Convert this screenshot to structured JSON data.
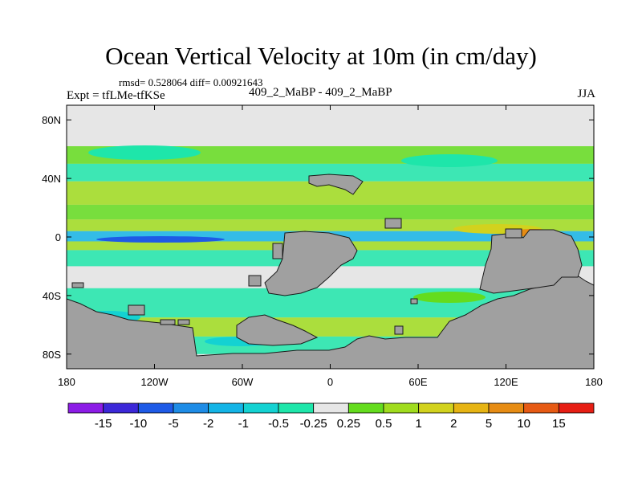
{
  "chart_data": {
    "type": "heatmap",
    "title": "Ocean Vertical Velocity at 10m (in cm/day)",
    "stats_label": "rmsd= 0.528064 diff= 0.00921643",
    "left_label": "Expt = tfLMe-tfKSe",
    "center_label": "409_2_MaBP - 409_2_MaBP",
    "right_label": "JJA",
    "xlim": [
      -180,
      180
    ],
    "ylim": [
      -90,
      90
    ],
    "x_ticks": [
      {
        "value": -180,
        "label": "180"
      },
      {
        "value": -120,
        "label": "120W"
      },
      {
        "value": -60,
        "label": "60W"
      },
      {
        "value": 0,
        "label": "0"
      },
      {
        "value": 60,
        "label": "60E"
      },
      {
        "value": 120,
        "label": "120E"
      },
      {
        "value": 180,
        "label": "180"
      }
    ],
    "y_ticks": [
      {
        "value": 80,
        "label": "80N"
      },
      {
        "value": 40,
        "label": "40N"
      },
      {
        "value": 0,
        "label": "0"
      },
      {
        "value": -40,
        "label": "40S"
      },
      {
        "value": -80,
        "label": "80S"
      }
    ],
    "colorbar": {
      "levels": [
        "-15",
        "-10",
        "-5",
        "-2",
        "-1",
        "-0.5",
        "-0.25",
        "0.25",
        "0.5",
        "1",
        "2",
        "5",
        "10",
        "15"
      ],
      "colors": [
        "#8c1ce6",
        "#3c28d8",
        "#1e5ae6",
        "#1e8ce6",
        "#14b4e6",
        "#14d2d2",
        "#1ee6aa",
        "#e6e6e6",
        "#64dc1e",
        "#a0dc1e",
        "#d2d21e",
        "#e6b414",
        "#e68c14",
        "#e65a14",
        "#e61e14"
      ]
    },
    "land_color": "#a0a0a0",
    "zonal_bands": [
      {
        "lat_from": 78,
        "lat_to": 62,
        "value": 0.1
      },
      {
        "lat_from": 62,
        "lat_to": 50,
        "value": 0.3
      },
      {
        "lat_from": 50,
        "lat_to": 38,
        "value": -0.35
      },
      {
        "lat_from": 38,
        "lat_to": 22,
        "value": 0.6
      },
      {
        "lat_from": 22,
        "lat_to": 12,
        "value": 0.3
      },
      {
        "lat_from": 12,
        "lat_to": 4,
        "value": 0.8
      },
      {
        "lat_from": 4,
        "lat_to": -3,
        "value": -1.5
      },
      {
        "lat_from": -3,
        "lat_to": -9,
        "value": 0.6
      },
      {
        "lat_from": -9,
        "lat_to": -20,
        "value": -0.4
      },
      {
        "lat_from": -20,
        "lat_to": -35,
        "value": 0.1
      },
      {
        "lat_from": -35,
        "lat_to": -55,
        "value": -0.4
      },
      {
        "lat_from": -55,
        "lat_to": -68,
        "value": 0.5
      },
      {
        "lat_from": -68,
        "lat_to": -80,
        "value": -0.4
      }
    ]
  }
}
